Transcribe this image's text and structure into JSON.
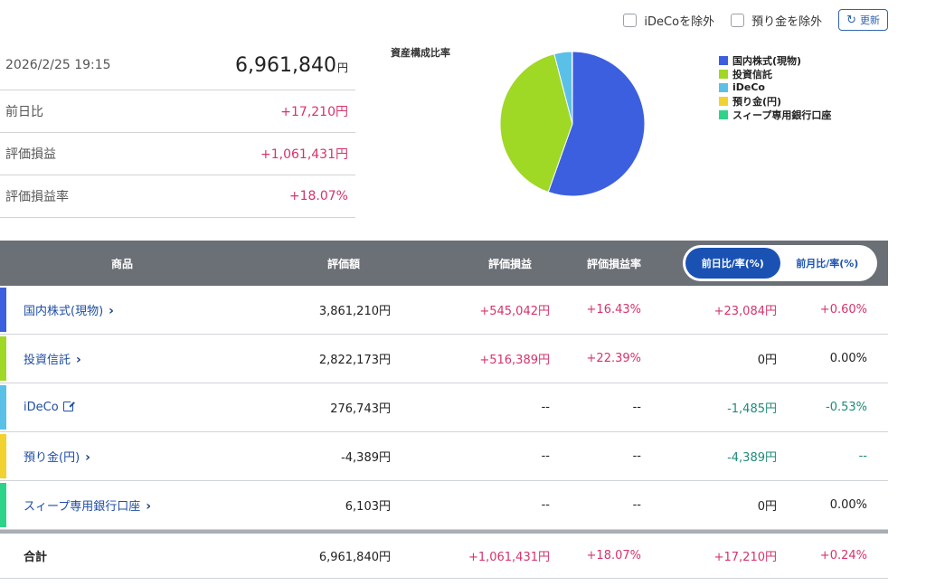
{
  "controls": {
    "exclude_ideco": "iDeCoを除外",
    "exclude_deposit": "預り金を除外",
    "refresh_label": "更新"
  },
  "summary": {
    "datetime": "2026/2/25 19:15",
    "total": "6,961,840",
    "yen": "円",
    "rows": [
      {
        "label": "前日比",
        "value": "+17,210円"
      },
      {
        "label": "評価損益",
        "value": "+1,061,431円"
      },
      {
        "label": "評価損益率",
        "value": "+18.07%"
      }
    ]
  },
  "chart_data": {
    "type": "pie",
    "title": "資産構成比率",
    "series": [
      {
        "name": "国内株式(現物)",
        "value": 3861210,
        "color": "#3c5fe0"
      },
      {
        "name": "投資信託",
        "value": 2822173,
        "color": "#9fd825"
      },
      {
        "name": "iDeCo",
        "value": 276743,
        "color": "#5bc0e8"
      },
      {
        "name": "預り金(円)",
        "value": 0,
        "color": "#f2d22e"
      },
      {
        "name": "スィープ専用銀行口座",
        "value": 6103,
        "color": "#2ed38a"
      }
    ]
  },
  "table": {
    "headers": [
      "商品",
      "評価額",
      "評価損益",
      "評価損益率"
    ],
    "toggle": {
      "daily": "前日比/率(%)",
      "monthly": "前月比/率(%)"
    },
    "rows": [
      {
        "name": "国内株式(現物)",
        "icon": "chevron-right-icon",
        "bar": "#3c5fe0",
        "value": "3,861,210円",
        "pl": "+545,042円",
        "plr": "+16.43%",
        "dd": "+23,084円",
        "ddr": "+0.60%",
        "pl_c": "pos",
        "dd_c": "pos"
      },
      {
        "name": "投資信託",
        "icon": "chevron-right-icon",
        "bar": "#9fd825",
        "value": "2,822,173円",
        "pl": "+516,389円",
        "plr": "+22.39%",
        "dd": "0円",
        "ddr": "0.00%",
        "pl_c": "pos",
        "dd_c": "neu"
      },
      {
        "name": "iDeCo",
        "icon": "external-link-icon",
        "bar": "#5bc0e8",
        "value": "276,743円",
        "pl": "--",
        "plr": "--",
        "dd": "-1,485円",
        "ddr": "-0.53%",
        "pl_c": "neu",
        "dd_c": "neg"
      },
      {
        "name": "預り金(円)",
        "icon": "chevron-right-icon",
        "bar": "#f2d22e",
        "value": "-4,389円",
        "pl": "--",
        "plr": "--",
        "dd": "-4,389円",
        "ddr": "--",
        "pl_c": "neu",
        "dd_c": "neg"
      },
      {
        "name": "スィープ専用銀行口座",
        "icon": "chevron-right-icon",
        "bar": "#2ed38a",
        "value": "6,103円",
        "pl": "--",
        "plr": "--",
        "dd": "0円",
        "ddr": "0.00%",
        "pl_c": "neu",
        "dd_c": "neu"
      }
    ],
    "total": {
      "name": "合計",
      "value": "6,961,840円",
      "pl": "+1,061,431円",
      "plr": "+18.07%",
      "dd": "+17,210円",
      "ddr": "+0.24%"
    }
  }
}
